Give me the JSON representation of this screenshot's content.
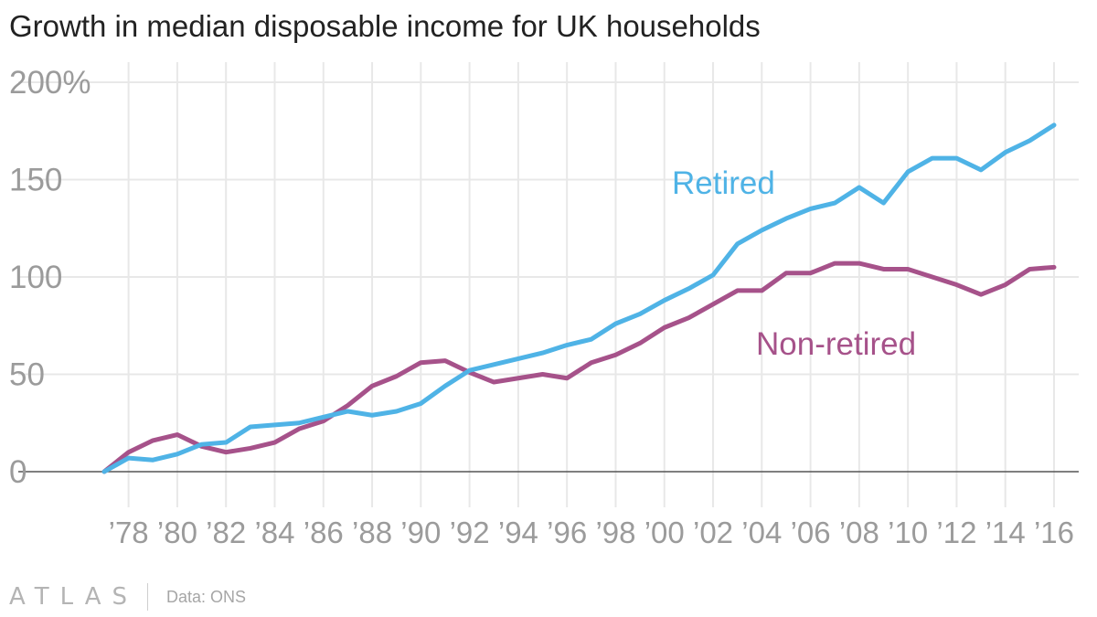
{
  "title": "Growth in median disposable income for UK households",
  "footer": {
    "logo": "ATLAS",
    "source": "Data: ONS"
  },
  "colors": {
    "retired": "#4fb3e6",
    "non_retired": "#a6528a",
    "grid": "#e8e8e8",
    "axis_text": "#9b9b9b",
    "zero_line": "#555555"
  },
  "chart_data": {
    "type": "line",
    "title": "Growth in median disposable income for UK households",
    "xlabel": "",
    "ylabel": "",
    "ylim": [
      0,
      200
    ],
    "xlim": [
      1977,
      2016
    ],
    "yticks": [
      0,
      50,
      100,
      150,
      200
    ],
    "ytick_labels": [
      "0",
      "50",
      "100",
      "150",
      "200%"
    ],
    "xticks": [
      1978,
      1980,
      1982,
      1984,
      1986,
      1988,
      1990,
      1992,
      1994,
      1996,
      1998,
      2000,
      2002,
      2004,
      2006,
      2008,
      2010,
      2012,
      2014,
      2016
    ],
    "xtick_labels": [
      "’78",
      "’80",
      "’82",
      "’84",
      "’86",
      "’88",
      "’90",
      "’92",
      "’94",
      "’96",
      "’98",
      "’00",
      "’02",
      "’04",
      "’06",
      "’08",
      "’10",
      "’12",
      "’14",
      "’16"
    ],
    "x": [
      1977,
      1978,
      1979,
      1980,
      1981,
      1982,
      1983,
      1984,
      1985,
      1986,
      1987,
      1988,
      1989,
      1990,
      1991,
      1992,
      1993,
      1994,
      1995,
      1996,
      1997,
      1998,
      1999,
      2000,
      2001,
      2002,
      2003,
      2004,
      2005,
      2006,
      2007,
      2008,
      2009,
      2010,
      2011,
      2012,
      2013,
      2014,
      2015,
      2016
    ],
    "series": [
      {
        "name": "Retired",
        "label": "Retired",
        "values": [
          0,
          7,
          6,
          9,
          14,
          15,
          23,
          24,
          25,
          28,
          31,
          29,
          31,
          35,
          44,
          52,
          55,
          58,
          61,
          65,
          68,
          76,
          81,
          88,
          94,
          101,
          117,
          124,
          130,
          135,
          138,
          146,
          138,
          154,
          161,
          161,
          155,
          164,
          170,
          178
        ]
      },
      {
        "name": "Non-retired",
        "label": "Non-retired",
        "values": [
          0,
          10,
          16,
          19,
          13,
          10,
          12,
          15,
          22,
          26,
          34,
          44,
          49,
          56,
          57,
          51,
          46,
          48,
          50,
          48,
          56,
          60,
          66,
          74,
          79,
          86,
          93,
          93,
          102,
          102,
          107,
          107,
          104,
          104,
          100,
          96,
          91,
          96,
          104,
          105
        ]
      }
    ],
    "annotations": [
      "Retired",
      "Non-retired"
    ],
    "grid": true
  }
}
